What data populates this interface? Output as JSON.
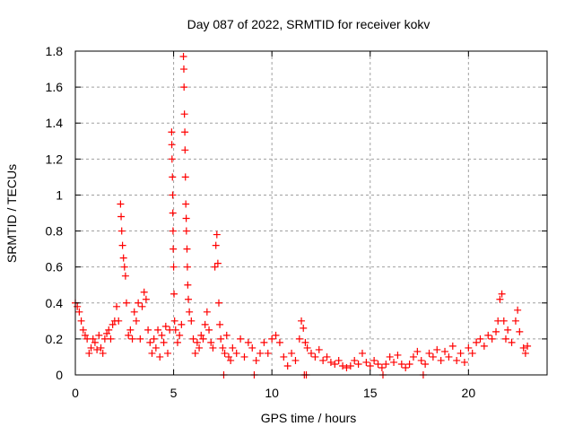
{
  "chart_data": {
    "type": "scatter",
    "title": "Day 087 of 2022, SRMTID for receiver kokv",
    "xlabel": "GPS time / hours",
    "ylabel": "SRMTID / TECUs",
    "xlim": [
      0,
      24
    ],
    "ylim": [
      0,
      1.8
    ],
    "grid": true,
    "legend": "none",
    "series_color": "#ff0000",
    "xticks": [
      {
        "v": 0,
        "label": "0"
      },
      {
        "v": 5,
        "label": "5"
      },
      {
        "v": 10,
        "label": "10"
      },
      {
        "v": 15,
        "label": "15"
      },
      {
        "v": 20,
        "label": "20"
      }
    ],
    "yticks": [
      {
        "v": 0,
        "label": "0"
      },
      {
        "v": 0.2,
        "label": "0.2"
      },
      {
        "v": 0.4,
        "label": "0.4"
      },
      {
        "v": 0.6,
        "label": "0.6"
      },
      {
        "v": 0.8,
        "label": "0.8"
      },
      {
        "v": 1,
        "label": "1"
      },
      {
        "v": 1.2,
        "label": "1.2"
      },
      {
        "v": 1.4,
        "label": "1.4"
      },
      {
        "v": 1.6,
        "label": "1.6"
      },
      {
        "v": 1.8,
        "label": "1.8"
      }
    ],
    "points": [
      [
        0.0,
        0.4
      ],
      [
        0.1,
        0.38
      ],
      [
        0.2,
        0.35
      ],
      [
        0.3,
        0.3
      ],
      [
        0.4,
        0.25
      ],
      [
        0.5,
        0.22
      ],
      [
        0.6,
        0.2
      ],
      [
        0.7,
        0.12
      ],
      [
        0.8,
        0.15
      ],
      [
        0.9,
        0.2
      ],
      [
        1.0,
        0.18
      ],
      [
        1.1,
        0.14
      ],
      [
        1.2,
        0.22
      ],
      [
        1.3,
        0.15
      ],
      [
        1.4,
        0.12
      ],
      [
        1.5,
        0.2
      ],
      [
        1.6,
        0.23
      ],
      [
        1.7,
        0.25
      ],
      [
        1.8,
        0.2
      ],
      [
        1.9,
        0.28
      ],
      [
        2.0,
        0.3
      ],
      [
        2.1,
        0.38
      ],
      [
        2.2,
        0.3
      ],
      [
        2.3,
        0.95
      ],
      [
        2.33,
        0.88
      ],
      [
        2.36,
        0.8
      ],
      [
        2.4,
        0.72
      ],
      [
        2.45,
        0.65
      ],
      [
        2.5,
        0.6
      ],
      [
        2.55,
        0.55
      ],
      [
        2.6,
        0.4
      ],
      [
        2.7,
        0.22
      ],
      [
        2.8,
        0.25
      ],
      [
        2.9,
        0.2
      ],
      [
        3.0,
        0.35
      ],
      [
        3.1,
        0.3
      ],
      [
        3.2,
        0.4
      ],
      [
        3.3,
        0.2
      ],
      [
        3.4,
        0.38
      ],
      [
        3.5,
        0.46
      ],
      [
        3.6,
        0.42
      ],
      [
        3.7,
        0.25
      ],
      [
        3.8,
        0.18
      ],
      [
        3.9,
        0.12
      ],
      [
        4.0,
        0.2
      ],
      [
        4.1,
        0.15
      ],
      [
        4.2,
        0.25
      ],
      [
        4.3,
        0.1
      ],
      [
        4.4,
        0.22
      ],
      [
        4.5,
        0.18
      ],
      [
        4.6,
        0.27
      ],
      [
        4.7,
        0.12
      ],
      [
        4.8,
        0.25
      ],
      [
        4.9,
        1.35
      ],
      [
        4.91,
        1.28
      ],
      [
        4.92,
        1.2
      ],
      [
        4.94,
        1.1
      ],
      [
        4.95,
        1.0
      ],
      [
        4.96,
        0.9
      ],
      [
        4.97,
        0.8
      ],
      [
        4.98,
        0.7
      ],
      [
        5.0,
        0.6
      ],
      [
        5.02,
        0.45
      ],
      [
        5.05,
        0.3
      ],
      [
        5.1,
        0.25
      ],
      [
        5.2,
        0.18
      ],
      [
        5.3,
        0.22
      ],
      [
        5.4,
        0.28
      ],
      [
        5.5,
        1.77
      ],
      [
        5.52,
        1.7
      ],
      [
        5.53,
        1.6
      ],
      [
        5.55,
        1.45
      ],
      [
        5.57,
        1.35
      ],
      [
        5.58,
        1.25
      ],
      [
        5.6,
        1.1
      ],
      [
        5.62,
        0.95
      ],
      [
        5.64,
        0.87
      ],
      [
        5.65,
        0.8
      ],
      [
        5.68,
        0.7
      ],
      [
        5.7,
        0.6
      ],
      [
        5.72,
        0.5
      ],
      [
        5.75,
        0.42
      ],
      [
        5.8,
        0.35
      ],
      [
        5.9,
        0.3
      ],
      [
        6.0,
        0.2
      ],
      [
        6.1,
        0.12
      ],
      [
        6.2,
        0.18
      ],
      [
        6.3,
        0.15
      ],
      [
        6.4,
        0.22
      ],
      [
        6.5,
        0.2
      ],
      [
        6.6,
        0.28
      ],
      [
        6.7,
        0.35
      ],
      [
        6.8,
        0.25
      ],
      [
        6.9,
        0.18
      ],
      [
        7.0,
        0.15
      ],
      [
        7.1,
        0.6
      ],
      [
        7.15,
        0.72
      ],
      [
        7.2,
        0.78
      ],
      [
        7.25,
        0.62
      ],
      [
        7.3,
        0.4
      ],
      [
        7.35,
        0.28
      ],
      [
        7.4,
        0.2
      ],
      [
        7.5,
        0.15
      ],
      [
        7.55,
        0.0
      ],
      [
        7.6,
        0.12
      ],
      [
        7.7,
        0.22
      ],
      [
        7.8,
        0.1
      ],
      [
        7.9,
        0.08
      ],
      [
        8.0,
        0.15
      ],
      [
        8.2,
        0.12
      ],
      [
        8.4,
        0.2
      ],
      [
        8.6,
        0.1
      ],
      [
        8.8,
        0.18
      ],
      [
        9.0,
        0.15
      ],
      [
        9.1,
        0.0
      ],
      [
        9.2,
        0.08
      ],
      [
        9.4,
        0.12
      ],
      [
        9.6,
        0.18
      ],
      [
        9.8,
        0.12
      ],
      [
        10.0,
        0.2
      ],
      [
        10.2,
        0.22
      ],
      [
        10.4,
        0.18
      ],
      [
        10.6,
        0.1
      ],
      [
        10.8,
        0.05
      ],
      [
        11.0,
        0.12
      ],
      [
        11.2,
        0.08
      ],
      [
        11.4,
        0.2
      ],
      [
        11.5,
        0.3
      ],
      [
        11.6,
        0.26
      ],
      [
        11.65,
        0.0
      ],
      [
        11.7,
        0.18
      ],
      [
        11.75,
        0.0
      ],
      [
        11.8,
        0.15
      ],
      [
        12.0,
        0.12
      ],
      [
        12.2,
        0.1
      ],
      [
        12.4,
        0.14
      ],
      [
        12.6,
        0.08
      ],
      [
        12.8,
        0.1
      ],
      [
        13.0,
        0.07
      ],
      [
        13.2,
        0.06
      ],
      [
        13.4,
        0.08
      ],
      [
        13.6,
        0.05
      ],
      [
        13.8,
        0.04
      ],
      [
        14.0,
        0.05
      ],
      [
        14.2,
        0.08
      ],
      [
        14.4,
        0.06
      ],
      [
        14.6,
        0.12
      ],
      [
        14.8,
        0.07
      ],
      [
        15.0,
        0.05
      ],
      [
        15.2,
        0.08
      ],
      [
        15.4,
        0.06
      ],
      [
        15.6,
        0.04
      ],
      [
        15.65,
        0.0
      ],
      [
        15.8,
        0.06
      ],
      [
        16.0,
        0.1
      ],
      [
        16.2,
        0.07
      ],
      [
        16.4,
        0.11
      ],
      [
        16.6,
        0.06
      ],
      [
        16.8,
        0.04
      ],
      [
        17.0,
        0.06
      ],
      [
        17.2,
        0.1
      ],
      [
        17.4,
        0.13
      ],
      [
        17.6,
        0.08
      ],
      [
        17.7,
        0.0
      ],
      [
        17.8,
        0.06
      ],
      [
        18.0,
        0.12
      ],
      [
        18.2,
        0.1
      ],
      [
        18.4,
        0.14
      ],
      [
        18.6,
        0.08
      ],
      [
        18.8,
        0.13
      ],
      [
        19.0,
        0.1
      ],
      [
        19.2,
        0.16
      ],
      [
        19.4,
        0.08
      ],
      [
        19.6,
        0.12
      ],
      [
        19.8,
        0.07
      ],
      [
        20.0,
        0.15
      ],
      [
        20.2,
        0.12
      ],
      [
        20.4,
        0.18
      ],
      [
        20.6,
        0.2
      ],
      [
        20.8,
        0.16
      ],
      [
        21.0,
        0.22
      ],
      [
        21.2,
        0.2
      ],
      [
        21.4,
        0.24
      ],
      [
        21.5,
        0.3
      ],
      [
        21.6,
        0.42
      ],
      [
        21.7,
        0.45
      ],
      [
        21.8,
        0.3
      ],
      [
        21.9,
        0.2
      ],
      [
        22.0,
        0.25
      ],
      [
        22.2,
        0.18
      ],
      [
        22.4,
        0.3
      ],
      [
        22.5,
        0.36
      ],
      [
        22.6,
        0.24
      ],
      [
        22.8,
        0.15
      ],
      [
        22.9,
        0.12
      ],
      [
        23.0,
        0.16
      ]
    ]
  }
}
